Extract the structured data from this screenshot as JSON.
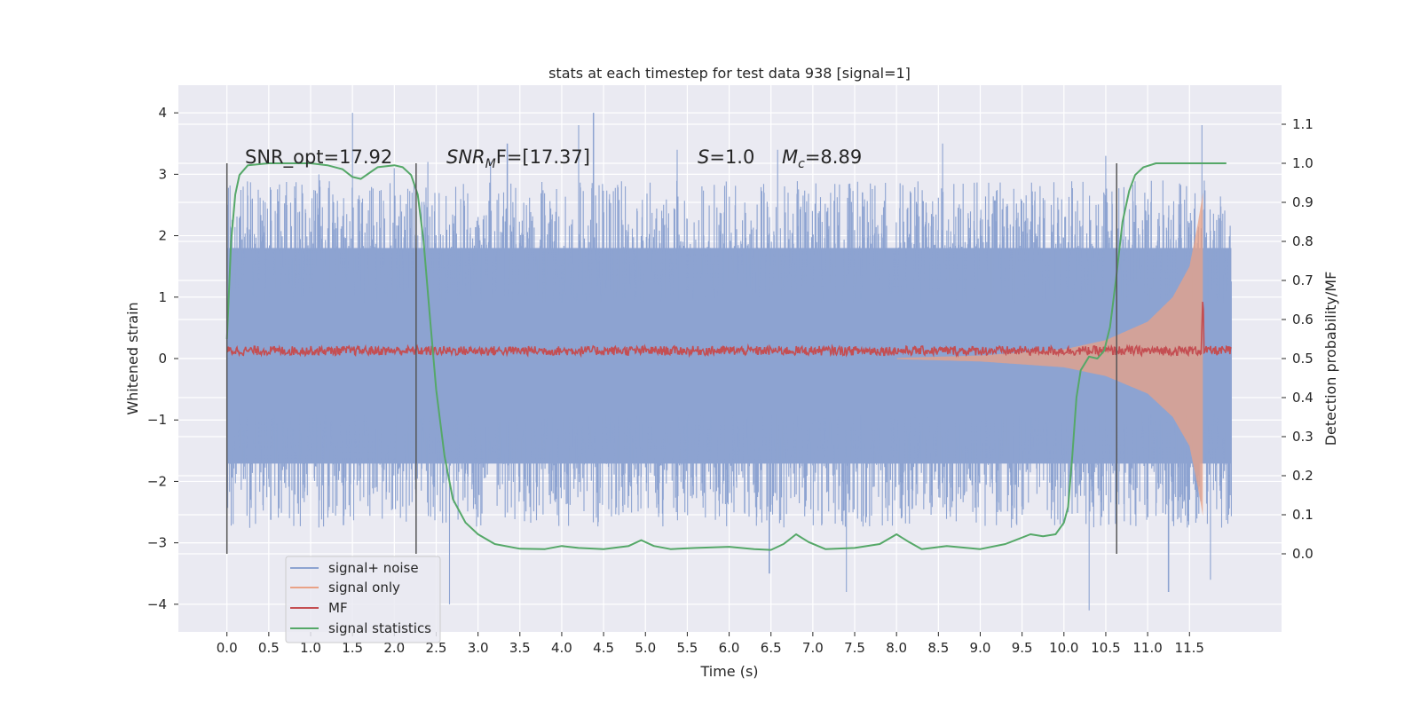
{
  "chart_data": {
    "type": "line",
    "title": "stats at each timestep for test data 938 [signal=1]",
    "xlabel": "Time (s)",
    "ylabel": "Whitened strain",
    "ylabel_right": "Detection probability/MF",
    "xlim": [
      -0.58,
      12.6
    ],
    "ylim": [
      -4.45,
      4.45
    ],
    "ylim_right": [
      -0.2,
      1.2
    ],
    "x_ticks": [
      "0.0",
      "0.5",
      "1.0",
      "1.5",
      "2.0",
      "2.5",
      "3.0",
      "3.5",
      "4.0",
      "4.5",
      "5.0",
      "5.5",
      "6.0",
      "6.5",
      "7.0",
      "7.5",
      "8.0",
      "8.5",
      "9.0",
      "9.5",
      "10.0",
      "10.5",
      "11.0",
      "11.5"
    ],
    "y_ticks": [
      "4",
      "3",
      "2",
      "1",
      "0",
      "−1",
      "−2",
      "−3",
      "−4"
    ],
    "y_ticks_right": [
      "1.1",
      "1.0",
      "0.9",
      "0.8",
      "0.7",
      "0.6",
      "0.5",
      "0.4",
      "0.3",
      "0.2",
      "0.1",
      "0.0"
    ],
    "grid": true,
    "legend_position": "lower-left",
    "annotations": {
      "snr_opt": "SNR_opt=17.92",
      "snr_mf_sym": "SNR",
      "snr_mf_sub": "M",
      "snr_mf_rest": "F=[17.37]",
      "s_sym": "S",
      "s_rest": "=1.0",
      "mc_sym": "M",
      "mc_sub": "c",
      "mc_rest": "=8.89"
    },
    "vertical_lines_x": [
      0.0,
      2.26,
      10.63
    ],
    "series": [
      {
        "name": "signal+ noise",
        "color": "#8da3d1",
        "axis": "left",
        "x_range": [
          0.0,
          12.0
        ],
        "typical_extent": [
          -1.9,
          2.0
        ],
        "peaks": [
          [
            0.0,
            2.1
          ],
          [
            1.1,
            3.0
          ],
          [
            1.5,
            4.0
          ],
          [
            2.0,
            3.1
          ],
          [
            2.4,
            3.2
          ],
          [
            2.66,
            -4.0
          ],
          [
            3.15,
            3.2
          ],
          [
            3.35,
            3.5
          ],
          [
            4.2,
            3.8
          ],
          [
            4.38,
            4.0
          ],
          [
            5.38,
            3.4
          ],
          [
            6.48,
            -3.5
          ],
          [
            6.58,
            3.4
          ],
          [
            7.4,
            -3.8
          ],
          [
            8.55,
            3.5
          ],
          [
            10.3,
            -4.1
          ],
          [
            10.5,
            3.3
          ],
          [
            11.25,
            -3.8
          ],
          [
            11.65,
            3.8
          ],
          [
            11.75,
            -3.6
          ]
        ]
      },
      {
        "name": "signal only",
        "color": "#e9a286",
        "axis": "left",
        "amplitude_envelope": [
          [
            8.0,
            0.01
          ],
          [
            9.0,
            0.05
          ],
          [
            10.0,
            0.15
          ],
          [
            10.5,
            0.3
          ],
          [
            11.0,
            0.6
          ],
          [
            11.3,
            1.0
          ],
          [
            11.5,
            1.5
          ],
          [
            11.6,
            2.2
          ],
          [
            11.66,
            2.7
          ],
          [
            11.7,
            0.0
          ]
        ]
      },
      {
        "name": "MF",
        "color": "#c44e52",
        "axis": "right",
        "baseline": 0.52,
        "noise": 0.012,
        "spike": [
          11.66,
          0.67
        ]
      },
      {
        "name": "signal statistics",
        "color": "#55a868",
        "axis": "right",
        "points": [
          [
            0.0,
            0.55
          ],
          [
            0.05,
            0.8
          ],
          [
            0.1,
            0.92
          ],
          [
            0.15,
            0.97
          ],
          [
            0.25,
            0.995
          ],
          [
            0.5,
            1.0
          ],
          [
            1.0,
            1.0
          ],
          [
            1.2,
            0.995
          ],
          [
            1.38,
            0.985
          ],
          [
            1.5,
            0.965
          ],
          [
            1.6,
            0.96
          ],
          [
            1.7,
            0.975
          ],
          [
            1.8,
            0.99
          ],
          [
            2.0,
            0.995
          ],
          [
            2.1,
            0.99
          ],
          [
            2.2,
            0.97
          ],
          [
            2.28,
            0.92
          ],
          [
            2.35,
            0.8
          ],
          [
            2.42,
            0.62
          ],
          [
            2.5,
            0.42
          ],
          [
            2.6,
            0.25
          ],
          [
            2.7,
            0.14
          ],
          [
            2.85,
            0.08
          ],
          [
            3.0,
            0.05
          ],
          [
            3.2,
            0.025
          ],
          [
            3.5,
            0.013
          ],
          [
            3.8,
            0.012
          ],
          [
            4.0,
            0.02
          ],
          [
            4.2,
            0.015
          ],
          [
            4.5,
            0.012
          ],
          [
            4.8,
            0.02
          ],
          [
            4.95,
            0.035
          ],
          [
            5.1,
            0.02
          ],
          [
            5.3,
            0.012
          ],
          [
            5.6,
            0.015
          ],
          [
            6.0,
            0.018
          ],
          [
            6.3,
            0.012
          ],
          [
            6.5,
            0.01
          ],
          [
            6.65,
            0.025
          ],
          [
            6.8,
            0.05
          ],
          [
            6.95,
            0.03
          ],
          [
            7.15,
            0.012
          ],
          [
            7.5,
            0.015
          ],
          [
            7.8,
            0.025
          ],
          [
            8.0,
            0.05
          ],
          [
            8.15,
            0.03
          ],
          [
            8.3,
            0.012
          ],
          [
            8.6,
            0.02
          ],
          [
            9.0,
            0.012
          ],
          [
            9.3,
            0.025
          ],
          [
            9.6,
            0.05
          ],
          [
            9.75,
            0.045
          ],
          [
            9.9,
            0.05
          ],
          [
            10.0,
            0.08
          ],
          [
            10.05,
            0.12
          ],
          [
            10.1,
            0.25
          ],
          [
            10.15,
            0.4
          ],
          [
            10.2,
            0.47
          ],
          [
            10.3,
            0.505
          ],
          [
            10.4,
            0.5
          ],
          [
            10.48,
            0.52
          ],
          [
            10.55,
            0.58
          ],
          [
            10.62,
            0.7
          ],
          [
            10.7,
            0.85
          ],
          [
            10.78,
            0.93
          ],
          [
            10.85,
            0.97
          ],
          [
            10.95,
            0.99
          ],
          [
            11.1,
            1.0
          ],
          [
            11.5,
            1.0
          ],
          [
            11.94,
            1.0
          ]
        ]
      }
    ]
  }
}
